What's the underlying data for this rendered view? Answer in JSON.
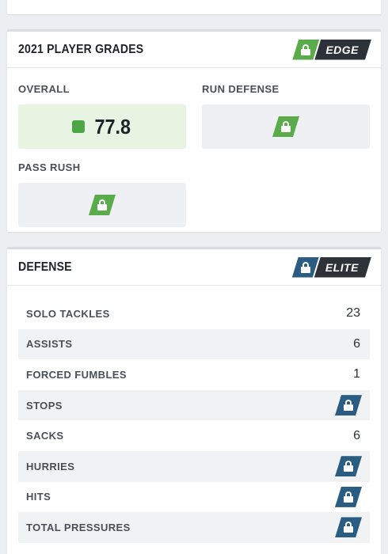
{
  "grades": {
    "title": "2021 PLAYER GRADES",
    "badge": {
      "label": "EDGE",
      "color": "#5aab4a",
      "icon": "lock-icon"
    },
    "cells": [
      {
        "label": "OVERALL",
        "value": "77.8",
        "status_color": "#4da545"
      },
      {
        "label": "RUN DEFENSE",
        "locked": true
      },
      {
        "label": "PASS RUSH",
        "locked": true
      }
    ]
  },
  "defense": {
    "title": "DEFENSE",
    "badge": {
      "label": "ELITE",
      "color": "#2a5d81",
      "icon": "lock-icon"
    },
    "rows": [
      {
        "label": "SOLO TACKLES",
        "value": "23"
      },
      {
        "label": "ASSISTS",
        "value": "6"
      },
      {
        "label": "FORCED FUMBLES",
        "value": "1"
      },
      {
        "label": "STOPS",
        "locked": true
      },
      {
        "label": "SACKS",
        "value": "6"
      },
      {
        "label": "HURRIES",
        "locked": true
      },
      {
        "label": "HITS",
        "locked": true
      },
      {
        "label": "TOTAL PRESSURES",
        "locked": true
      }
    ]
  }
}
